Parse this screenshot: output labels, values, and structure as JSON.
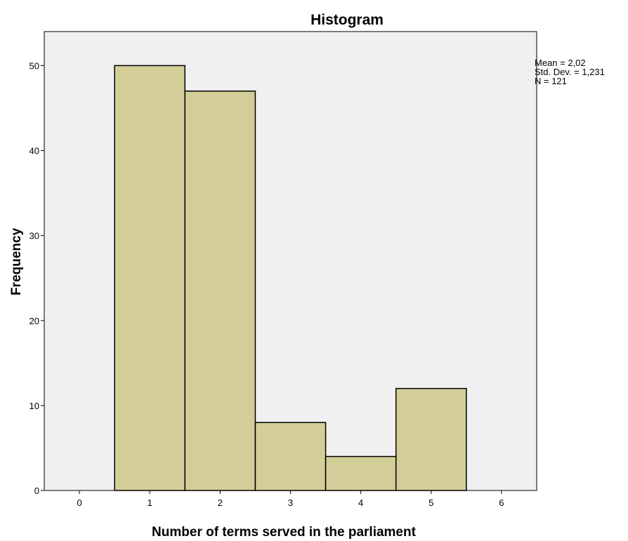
{
  "chart_data": {
    "type": "bar",
    "title": "Histogram",
    "xlabel": "Number of terms served in the parliament",
    "ylabel": "Frequency",
    "xlim": [
      -0.5,
      6.5
    ],
    "ylim": [
      0,
      54
    ],
    "x_ticks": [
      0,
      1,
      2,
      3,
      4,
      5,
      6
    ],
    "y_ticks": [
      0,
      10,
      20,
      30,
      40,
      50
    ],
    "bins": [
      {
        "from": 0.5,
        "to": 1.5,
        "center": 1,
        "value": 50
      },
      {
        "from": 1.5,
        "to": 2.5,
        "center": 2,
        "value": 47
      },
      {
        "from": 2.5,
        "to": 3.5,
        "center": 3,
        "value": 8
      },
      {
        "from": 3.5,
        "to": 4.5,
        "center": 4,
        "value": 4
      },
      {
        "from": 4.5,
        "to": 5.5,
        "center": 5,
        "value": 12
      }
    ],
    "grid": false,
    "colors": {
      "bar_fill": "#d3ce97",
      "bar_stroke": "#000000",
      "plot_background": "#f0f0f0"
    }
  },
  "stats": {
    "mean": "Mean = 2,02",
    "std_dev": "Std. Dev. = 1,231",
    "n": "N = 121"
  }
}
